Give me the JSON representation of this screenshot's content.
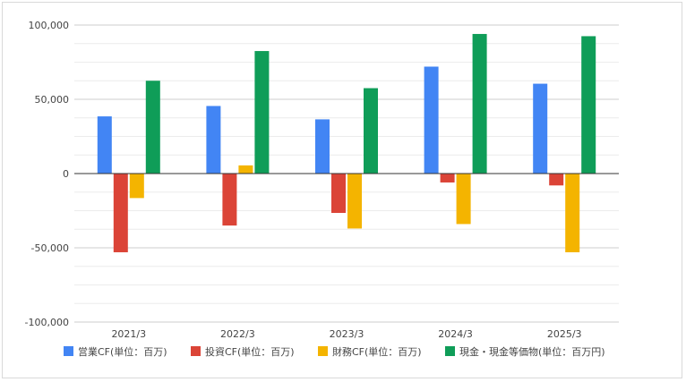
{
  "chart_data": {
    "type": "bar",
    "categories": [
      "2021/3",
      "2022/3",
      "2023/3",
      "2024/3",
      "2025/3"
    ],
    "series": [
      {
        "name": "営業CF(単位：百万)",
        "color": "#4285f4",
        "values": [
          38500,
          45500,
          36500,
          72000,
          60500
        ]
      },
      {
        "name": "投資CF(単位：百万)",
        "color": "#db4437",
        "values": [
          -53000,
          -35000,
          -26500,
          -6000,
          -8000
        ]
      },
      {
        "name": "財務CF(単位：百万)",
        "color": "#f4b400",
        "values": [
          -16500,
          5500,
          -37000,
          -34000,
          -53000
        ]
      },
      {
        "name": "現金・現金等価物(単位：百万円)",
        "color": "#0f9d58",
        "values": [
          62500,
          82500,
          57500,
          94000,
          92500
        ]
      }
    ],
    "yticks": [
      100000,
      50000,
      0,
      -50000,
      -100000
    ],
    "ytick_labels": [
      "100,000",
      "50,000",
      "0",
      "-50,000",
      "-100,000"
    ],
    "ylim": [
      -100000,
      100000
    ],
    "grid": true,
    "legend": "bottom"
  }
}
